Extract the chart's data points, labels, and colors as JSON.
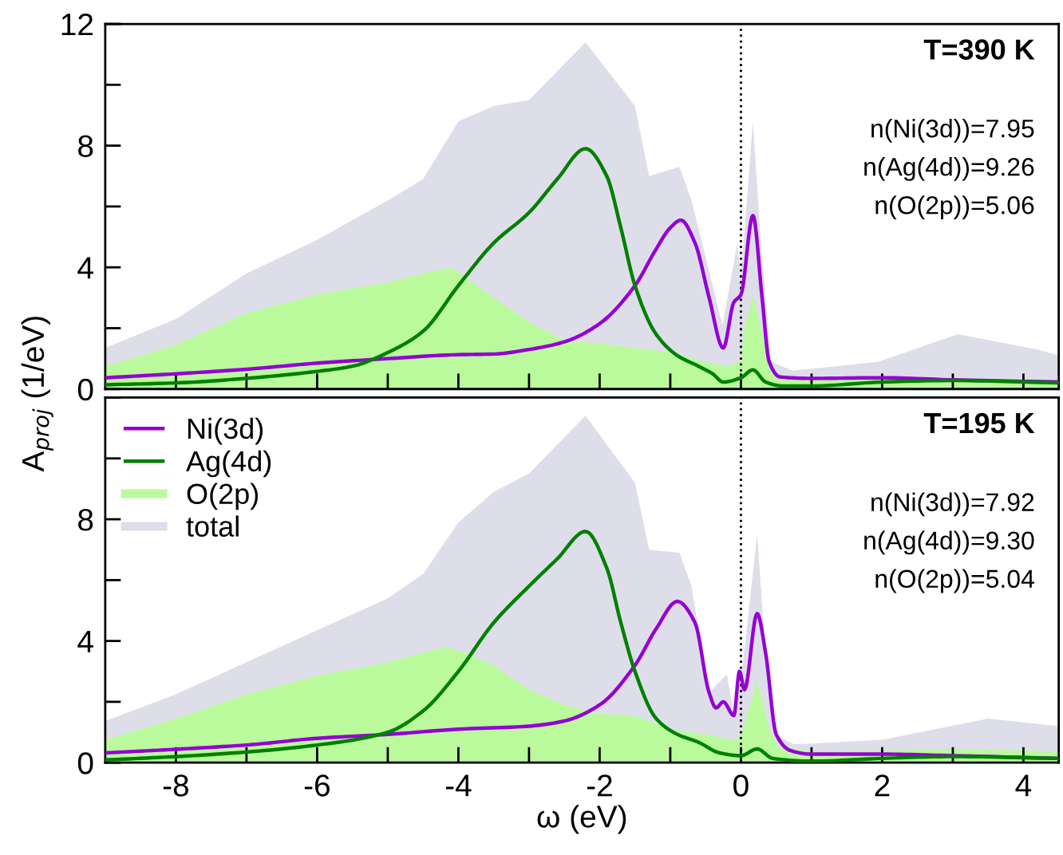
{
  "chart_data": [
    {
      "type": "line",
      "ylabel": "A$_{proj}$ (1/eV)",
      "tick_labels": "y",
      "legend": false,
      "grid": false,
      "xlim": [
        -9,
        4.5
      ],
      "ylim": [
        0,
        12
      ],
      "xticks": [
        {
          "value": -8,
          "label": null
        },
        {
          "value": -7,
          "label": null
        },
        {
          "value": -6,
          "label": null
        },
        {
          "value": -5,
          "label": null
        },
        {
          "value": -4,
          "label": null
        },
        {
          "value": -3,
          "label": null
        },
        {
          "value": -2,
          "label": null
        },
        {
          "value": -1,
          "label": null
        },
        {
          "value": 0,
          "label": null
        },
        {
          "value": 1,
          "label": null
        },
        {
          "value": 2,
          "label": null
        },
        {
          "value": 3,
          "label": null
        },
        {
          "value": 4,
          "label": null
        }
      ],
      "yticks": [
        0,
        {
          "value": 2,
          "label": null
        },
        4,
        {
          "value": 6,
          "label": null
        },
        8,
        {
          "value": 10,
          "label": null
        },
        12
      ],
      "ref_lines": [
        {
          "axis": "x",
          "value": 0,
          "line_style": "dotted",
          "color": "#000000"
        }
      ],
      "annotations": [
        "T=390 K",
        "n(Ni(3d))=7.95",
        "n(Ag(4d))=9.26",
        "n(O(2p))=5.06"
      ],
      "series": [
        {
          "color": "#9400d3",
          "x": [
            -9,
            -8,
            -7,
            -6,
            -5,
            -4,
            -3.5,
            -3,
            -2.5,
            -2,
            -1.5,
            -1.2,
            -1,
            -0.85,
            -0.65,
            -0.45,
            -0.25,
            -0.1,
            0,
            0.17,
            0.3,
            0.4,
            0.55,
            1,
            2,
            3,
            4.5
          ],
          "values": [
            0.37,
            0.5,
            0.65,
            0.85,
            1.0,
            1.13,
            1.15,
            1.3,
            1.55,
            2.15,
            3.4,
            4.6,
            5.3,
            5.55,
            4.8,
            3.0,
            1.35,
            2.85,
            3.1,
            5.7,
            3.0,
            0.9,
            0.4,
            0.35,
            0.37,
            0.3,
            0.23
          ]
        },
        {
          "color": "#008000",
          "x": [
            -9,
            -8,
            -7,
            -6,
            -5.5,
            -5,
            -4.5,
            -4,
            -3.5,
            -3,
            -2.6,
            -2.2,
            -1.9,
            -1.7,
            -1.5,
            -1.2,
            -0.9,
            -0.6,
            -0.4,
            -0.25,
            0,
            0.17,
            0.35,
            0.6,
            1,
            2,
            3,
            4.5
          ],
          "values": [
            0.14,
            0.2,
            0.35,
            0.58,
            0.75,
            1.2,
            1.9,
            3.4,
            4.8,
            5.8,
            6.9,
            7.9,
            7.0,
            5.3,
            3.4,
            1.8,
            1.1,
            0.75,
            0.5,
            0.23,
            0.37,
            0.63,
            0.23,
            0.1,
            0.1,
            0.23,
            0.28,
            0.2
          ]
        },
        {
          "type": "area",
          "color": "#bafa9c",
          "x": [
            -9,
            -8,
            -7,
            -6,
            -5,
            -4.5,
            -4.1,
            -3.5,
            -3,
            -2.5,
            -2,
            -1.5,
            -1,
            -0.5,
            -0.2,
            0,
            0.05,
            0.17,
            0.35,
            0.5,
            1,
            2,
            3,
            4.5
          ],
          "values": [
            0.75,
            1.45,
            2.5,
            3.1,
            3.5,
            3.8,
            4.0,
            3.0,
            2.2,
            1.6,
            1.5,
            1.35,
            1.2,
            0.9,
            0.75,
            0.9,
            2.0,
            3.1,
            1.4,
            0.5,
            0.35,
            0.3,
            0.35,
            0.3
          ]
        },
        {
          "type": "area",
          "color": "#dedeea",
          "x": [
            -9,
            -8,
            -7,
            -6,
            -5,
            -4.5,
            -4,
            -3.5,
            -3,
            -2.2,
            -1.5,
            -1.3,
            -0.87,
            -0.7,
            -0.26,
            -0.05,
            0,
            0.17,
            0.28,
            0.43,
            0.73,
            1.95,
            3.07,
            4.2,
            4.5
          ],
          "values": [
            1.35,
            2.3,
            3.8,
            4.9,
            6.2,
            6.9,
            8.8,
            9.3,
            9.5,
            11.4,
            9.3,
            7.0,
            7.3,
            6.2,
            2.1,
            4.8,
            3.7,
            8.8,
            4.9,
            0.9,
            0.6,
            0.9,
            1.8,
            1.3,
            1.1
          ]
        }
      ]
    },
    {
      "type": "line",
      "xlabel": "ω (eV)",
      "legend": "top left",
      "grid": false,
      "xlim": [
        -9,
        4.5
      ],
      "ylim": [
        0,
        12
      ],
      "xticks": [
        -8,
        {
          "value": -7,
          "label": null
        },
        -6,
        {
          "value": -5,
          "label": null
        },
        -4,
        {
          "value": -3,
          "label": null
        },
        -2,
        {
          "value": -1,
          "label": null
        },
        0,
        {
          "value": 1,
          "label": null
        },
        2,
        {
          "value": 3,
          "label": null
        },
        4
      ],
      "yticks": [
        0,
        {
          "value": 2,
          "label": null
        },
        4,
        {
          "value": 6,
          "label": null
        },
        8,
        {
          "value": 10,
          "label": null
        },
        {
          "value": 12,
          "label": null
        }
      ],
      "ref_lines": [
        {
          "axis": "x",
          "value": 0,
          "line_style": "dotted",
          "color": "#000000"
        }
      ],
      "annotations": [
        "T=195 K",
        "n(Ni(3d))=7.92",
        "n(Ag(4d))=9.30",
        "n(O(2p))=5.04"
      ],
      "series": [
        {
          "name": "Ni(3d)",
          "color": "#9400d3",
          "x": [
            -9,
            -8,
            -7,
            -6,
            -5,
            -4,
            -3,
            -2.5,
            -2,
            -1.5,
            -1.2,
            -0.9,
            -0.65,
            -0.45,
            -0.35,
            -0.25,
            -0.1,
            -0.02,
            0.05,
            0.23,
            0.35,
            0.5,
            0.7,
            1,
            2,
            3,
            4.5
          ],
          "values": [
            0.32,
            0.44,
            0.58,
            0.8,
            0.93,
            1.1,
            1.2,
            1.37,
            1.9,
            3.2,
            4.4,
            5.3,
            4.6,
            2.3,
            1.8,
            2.0,
            1.55,
            3.0,
            2.4,
            4.9,
            3.6,
            0.93,
            0.4,
            0.28,
            0.28,
            0.23,
            0.14
          ]
        },
        {
          "name": "Ag(4d)",
          "color": "#008000",
          "x": [
            -9,
            -8,
            -7,
            -6,
            -5,
            -4.5,
            -4,
            -3.5,
            -3,
            -2.6,
            -2.2,
            -1.9,
            -1.7,
            -1.5,
            -1.2,
            -0.9,
            -0.6,
            -0.3,
            0,
            0.23,
            0.45,
            1,
            2,
            3,
            4.5
          ],
          "values": [
            0.09,
            0.2,
            0.35,
            0.58,
            1.0,
            1.7,
            3.0,
            4.6,
            5.8,
            6.7,
            7.6,
            6.4,
            4.6,
            3.0,
            1.45,
            0.93,
            0.67,
            0.32,
            0.23,
            0.45,
            0.14,
            0.05,
            0.14,
            0.2,
            0.14
          ]
        },
        {
          "type": "area",
          "name": "O(2p)",
          "color": "#bafa9c",
          "x": [
            -9,
            -8,
            -7,
            -6,
            -5,
            -4.2,
            -4,
            -3.5,
            -3,
            -2.5,
            -2,
            -1.5,
            -1,
            -0.5,
            -0.1,
            0,
            0.23,
            0.4,
            0.55,
            1,
            2,
            3,
            4.5
          ],
          "values": [
            0.75,
            1.45,
            2.25,
            2.85,
            3.3,
            3.8,
            3.7,
            3.2,
            2.4,
            1.9,
            1.6,
            1.55,
            1.1,
            0.93,
            0.75,
            0.9,
            2.7,
            1.1,
            0.5,
            0.37,
            0.4,
            0.45,
            0.37
          ]
        },
        {
          "type": "area",
          "name": "total",
          "color": "#dedeea",
          "x": [
            -9,
            -8,
            -7,
            -6,
            -5,
            -4.5,
            -4,
            -3.5,
            -3,
            -2.2,
            -1.5,
            -1.3,
            -0.87,
            -0.7,
            -0.45,
            -0.2,
            -0.1,
            0,
            0.23,
            0.35,
            0.5,
            0.75,
            2,
            3.5,
            4.5
          ],
          "values": [
            1.37,
            2.25,
            3.3,
            4.35,
            5.4,
            6.2,
            7.9,
            8.9,
            9.5,
            11.4,
            9.2,
            7.0,
            6.9,
            5.8,
            2.3,
            2.9,
            1.6,
            2.7,
            7.5,
            3.6,
            0.9,
            0.6,
            0.75,
            1.45,
            1.2
          ]
        }
      ]
    }
  ]
}
